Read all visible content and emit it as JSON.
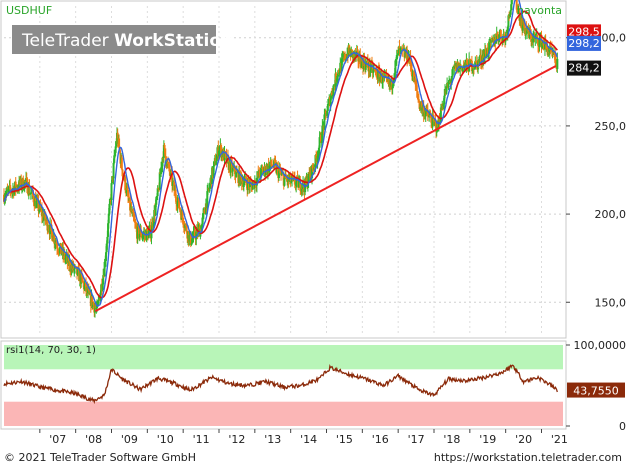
{
  "symbol": "USDHUF",
  "period": "havonta",
  "watermark_light": "TeleTrader",
  "watermark_bold": "WorkStation",
  "rsi_label": "rsi1(14, 70, 30, 1)",
  "footer": {
    "copyright": "© 2021 TeleTrader Software GmbH",
    "url": "https://workstation.teletrader.com"
  },
  "colors": {
    "candle_up": "#2db52d",
    "candle_down": "#f07d10",
    "ma_short": "#3366dd",
    "ma_long": "#dd1111",
    "trendline": "#ee2222",
    "rsi_line": "#8b2a0a",
    "rsi_overbought_band": "#b8f5b8",
    "rsi_oversold_band": "#fbb6b6",
    "symbol_text": "#2aa52a"
  },
  "chart_data": [
    {
      "type": "candlestick",
      "title": "USDHUF",
      "ylim": [
        132,
        318
      ],
      "y_ticks": [
        "150,0",
        "200,0",
        "250,0",
        "300,0"
      ],
      "x_tick_labels": [
        "'07",
        "'08",
        "'09",
        "'10",
        "'11",
        "'12",
        "'13",
        "'14",
        "'15",
        "'16",
        "'17",
        "'18",
        "'19",
        "'20",
        "'21"
      ],
      "x_range": [
        2006.0,
        2021.6
      ],
      "price_markers": {
        "ma_long": "298,5",
        "ma_short": "298,2",
        "last": "284,2"
      },
      "price_marker_values": {
        "ma_long": 298.5,
        "ma_short": 298.2,
        "last": 284.2
      },
      "trendline": {
        "x": [
          2008.55,
          2021.4
        ],
        "y": [
          145,
          284
        ]
      },
      "anchors": [
        [
          2006.0,
          211
        ],
        [
          2006.3,
          215
        ],
        [
          2006.6,
          218
        ],
        [
          2006.9,
          206
        ],
        [
          2007.2,
          195
        ],
        [
          2007.5,
          182
        ],
        [
          2007.8,
          172
        ],
        [
          2008.1,
          165
        ],
        [
          2008.4,
          152
        ],
        [
          2008.6,
          145
        ],
        [
          2008.8,
          170
        ],
        [
          2009.0,
          215
        ],
        [
          2009.15,
          245
        ],
        [
          2009.3,
          225
        ],
        [
          2009.5,
          205
        ],
        [
          2009.7,
          190
        ],
        [
          2009.9,
          188
        ],
        [
          2010.1,
          190
        ],
        [
          2010.3,
          212
        ],
        [
          2010.45,
          237
        ],
        [
          2010.6,
          225
        ],
        [
          2010.8,
          210
        ],
        [
          2011.0,
          197
        ],
        [
          2011.2,
          185
        ],
        [
          2011.5,
          192
        ],
        [
          2011.8,
          222
        ],
        [
          2012.0,
          238
        ],
        [
          2012.3,
          227
        ],
        [
          2012.6,
          220
        ],
        [
          2012.9,
          216
        ],
        [
          2013.2,
          224
        ],
        [
          2013.5,
          228
        ],
        [
          2013.8,
          220
        ],
        [
          2014.1,
          218
        ],
        [
          2014.4,
          216
        ],
        [
          2014.7,
          230
        ],
        [
          2015.0,
          258
        ],
        [
          2015.3,
          280
        ],
        [
          2015.6,
          292
        ],
        [
          2015.9,
          288
        ],
        [
          2016.2,
          283
        ],
        [
          2016.5,
          278
        ],
        [
          2016.8,
          272
        ],
        [
          2017.0,
          292
        ],
        [
          2017.3,
          289
        ],
        [
          2017.6,
          262
        ],
        [
          2017.9,
          254
        ],
        [
          2018.1,
          249
        ],
        [
          2018.3,
          268
        ],
        [
          2018.6,
          283
        ],
        [
          2018.9,
          284
        ],
        [
          2019.2,
          285
        ],
        [
          2019.5,
          293
        ],
        [
          2019.8,
          302
        ],
        [
          2020.0,
          300
        ],
        [
          2020.2,
          328
        ],
        [
          2020.45,
          308
        ],
        [
          2020.7,
          300
        ],
        [
          2021.0,
          298
        ],
        [
          2021.3,
          290
        ],
        [
          2021.45,
          284
        ]
      ]
    },
    {
      "type": "line",
      "title": "rsi1(14, 70, 30, 1)",
      "ylim": [
        0,
        100
      ],
      "y_ticks": [
        "0",
        "100,0000"
      ],
      "overbought": 70,
      "oversold": 30,
      "last_value": "43,7550",
      "last_value_num": 43.755,
      "anchors": [
        [
          2006.0,
          52
        ],
        [
          2006.5,
          55
        ],
        [
          2007.0,
          48
        ],
        [
          2007.5,
          44
        ],
        [
          2008.0,
          40
        ],
        [
          2008.5,
          31
        ],
        [
          2008.8,
          38
        ],
        [
          2009.0,
          70
        ],
        [
          2009.3,
          58
        ],
        [
          2009.8,
          45
        ],
        [
          2010.3,
          59
        ],
        [
          2010.8,
          52
        ],
        [
          2011.2,
          44
        ],
        [
          2011.8,
          60
        ],
        [
          2012.3,
          52
        ],
        [
          2012.8,
          50
        ],
        [
          2013.3,
          55
        ],
        [
          2013.8,
          48
        ],
        [
          2014.3,
          50
        ],
        [
          2014.8,
          58
        ],
        [
          2015.1,
          72
        ],
        [
          2015.6,
          64
        ],
        [
          2016.1,
          58
        ],
        [
          2016.6,
          50
        ],
        [
          2017.0,
          62
        ],
        [
          2017.6,
          44
        ],
        [
          2018.0,
          38
        ],
        [
          2018.4,
          58
        ],
        [
          2018.9,
          56
        ],
        [
          2019.4,
          60
        ],
        [
          2019.9,
          66
        ],
        [
          2020.2,
          75
        ],
        [
          2020.5,
          55
        ],
        [
          2020.9,
          60
        ],
        [
          2021.2,
          52
        ],
        [
          2021.45,
          44
        ]
      ]
    }
  ]
}
